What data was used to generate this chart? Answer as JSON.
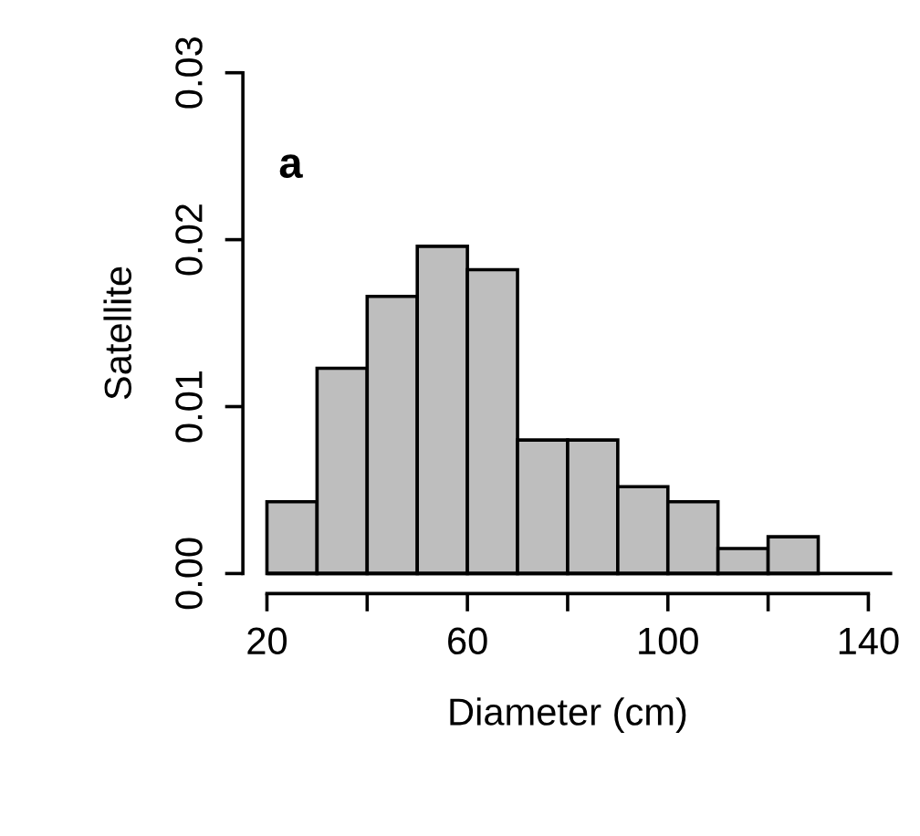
{
  "chart_data": {
    "type": "histogram",
    "xlabel": "Diameter (cm)",
    "ylabel": "Satellite",
    "annotations": [
      "a"
    ],
    "bins": [
      20,
      30,
      40,
      50,
      60,
      70,
      80,
      90,
      100,
      110,
      120,
      130
    ],
    "values": [
      0.0043,
      0.0123,
      0.0166,
      0.0196,
      0.0182,
      0.008,
      0.008,
      0.0052,
      0.0043,
      0.0015,
      0.0022
    ],
    "color": "#bebebe",
    "xlim": [
      15.2,
      144.8
    ],
    "ylim": [
      -0.0012,
      0.03
    ],
    "xticks": [
      20,
      {
        "value": 40,
        "label": null
      },
      60,
      {
        "value": 80,
        "label": null
      },
      100,
      {
        "value": 120,
        "label": null
      },
      140
    ],
    "yticks": [
      {
        "value": 0,
        "label": "0.00"
      },
      {
        "value": 0.01,
        "label": "0.01"
      },
      {
        "value": 0.02,
        "label": "0.02"
      },
      {
        "value": 0.03,
        "label": "0.03"
      }
    ],
    "ref_lines": [
      {
        "axis": "y",
        "value": 0,
        "color": "#000000"
      }
    ]
  }
}
